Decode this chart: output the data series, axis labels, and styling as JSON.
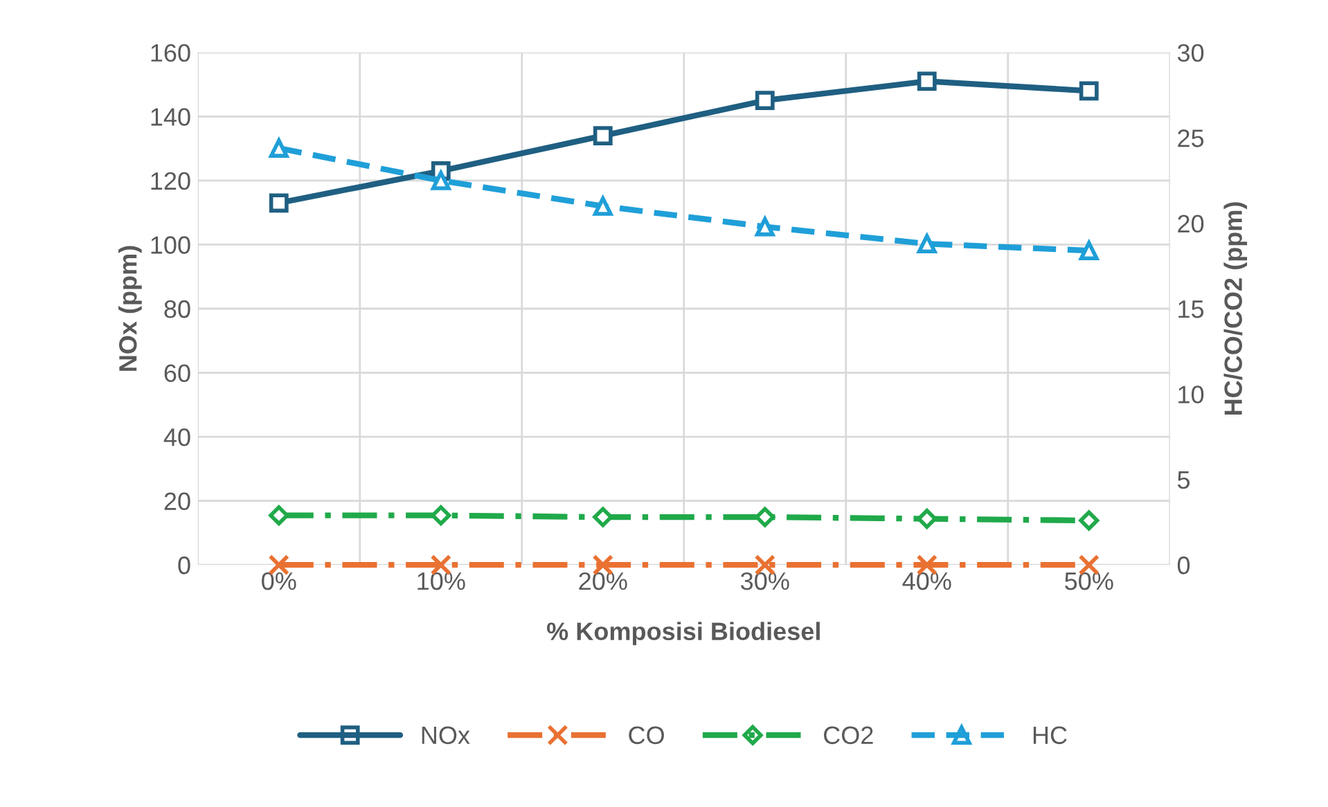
{
  "chart_data": {
    "type": "line",
    "xlabel": "% Komposisi Biodiesel",
    "ylabel": "NOx (ppm)",
    "y2label": "HC/CO/CO2 (ppm)",
    "categories": [
      "0%",
      "10%",
      "20%",
      "30%",
      "40%",
      "50%"
    ],
    "series": [
      {
        "name": "NOx",
        "color": "#1f5f82",
        "values": [
          113,
          123,
          134,
          145,
          151,
          148
        ],
        "marker": "square",
        "line_style": "solid"
      },
      {
        "name": "CO",
        "color": "#e97132",
        "values": [
          0,
          0,
          0,
          0,
          0,
          0
        ],
        "axis": "y2",
        "marker": "cross",
        "line_style": "dashdot"
      },
      {
        "name": "CO2",
        "color": "#20a94a",
        "values": [
          2.9,
          2.9,
          2.8,
          2.8,
          2.7,
          2.6
        ],
        "axis": "y2",
        "marker": "diamond",
        "line_style": "dashdot"
      },
      {
        "name": "HC",
        "color": "#1f9fd8",
        "values": [
          24.4,
          22.5,
          21.0,
          19.8,
          18.8,
          18.4
        ],
        "axis": "y2",
        "marker": "triangle",
        "line_style": "dashed"
      }
    ],
    "ylim": [
      0,
      160
    ],
    "yticks": [
      0,
      20,
      40,
      60,
      80,
      100,
      120,
      140,
      160
    ],
    "y2lim": [
      0,
      30
    ],
    "y2ticks": [
      0,
      5,
      10,
      15,
      20,
      25,
      30
    ],
    "grid": true,
    "legend": "bottom"
  }
}
